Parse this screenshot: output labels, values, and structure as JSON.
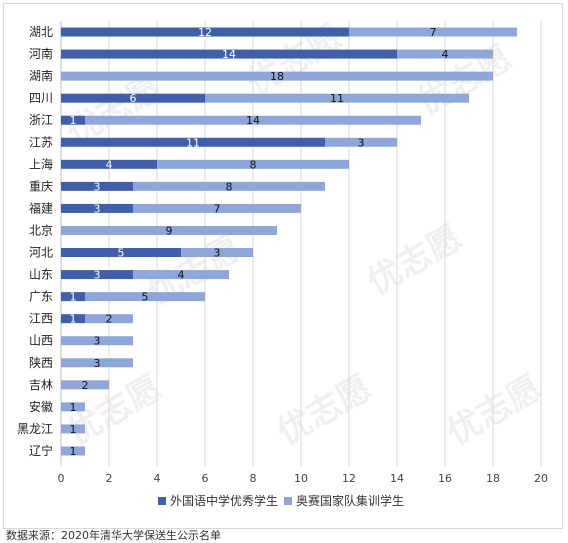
{
  "chart_data": {
    "type": "bar",
    "orientation": "horizontal",
    "stacked": true,
    "categories": [
      "湖北",
      "河南",
      "湖南",
      "四川",
      "浙江",
      "江苏",
      "上海",
      "重庆",
      "福建",
      "北京",
      "河北",
      "山东",
      "广东",
      "江西",
      "山西",
      "陕西",
      "吉林",
      "安徽",
      "黑龙江",
      "辽宁"
    ],
    "series": [
      {
        "name": "外国语中学优秀学生",
        "color": "#3f5fa8",
        "label_color": "#ffffff",
        "values": [
          12,
          14,
          0,
          6,
          1,
          11,
          4,
          3,
          3,
          0,
          5,
          3,
          1,
          1,
          0,
          0,
          0,
          0,
          0,
          0
        ]
      },
      {
        "name": "奥赛国家队集训学生",
        "color": "#8fa7d8",
        "label_color": "#111111",
        "values": [
          7,
          4,
          18,
          11,
          14,
          3,
          8,
          8,
          7,
          9,
          3,
          4,
          5,
          2,
          3,
          3,
          2,
          1,
          1,
          1
        ]
      }
    ],
    "xlim": [
      0,
      20
    ],
    "xticks": [
      0,
      2,
      4,
      6,
      8,
      10,
      12,
      14,
      16,
      18,
      20
    ],
    "grid": true,
    "legend": "bottom",
    "xlabel": "",
    "ylabel": "",
    "title": ""
  },
  "watermark": "优志愿",
  "source_note": "数据来源：2020年清华大学保送生公示名单"
}
